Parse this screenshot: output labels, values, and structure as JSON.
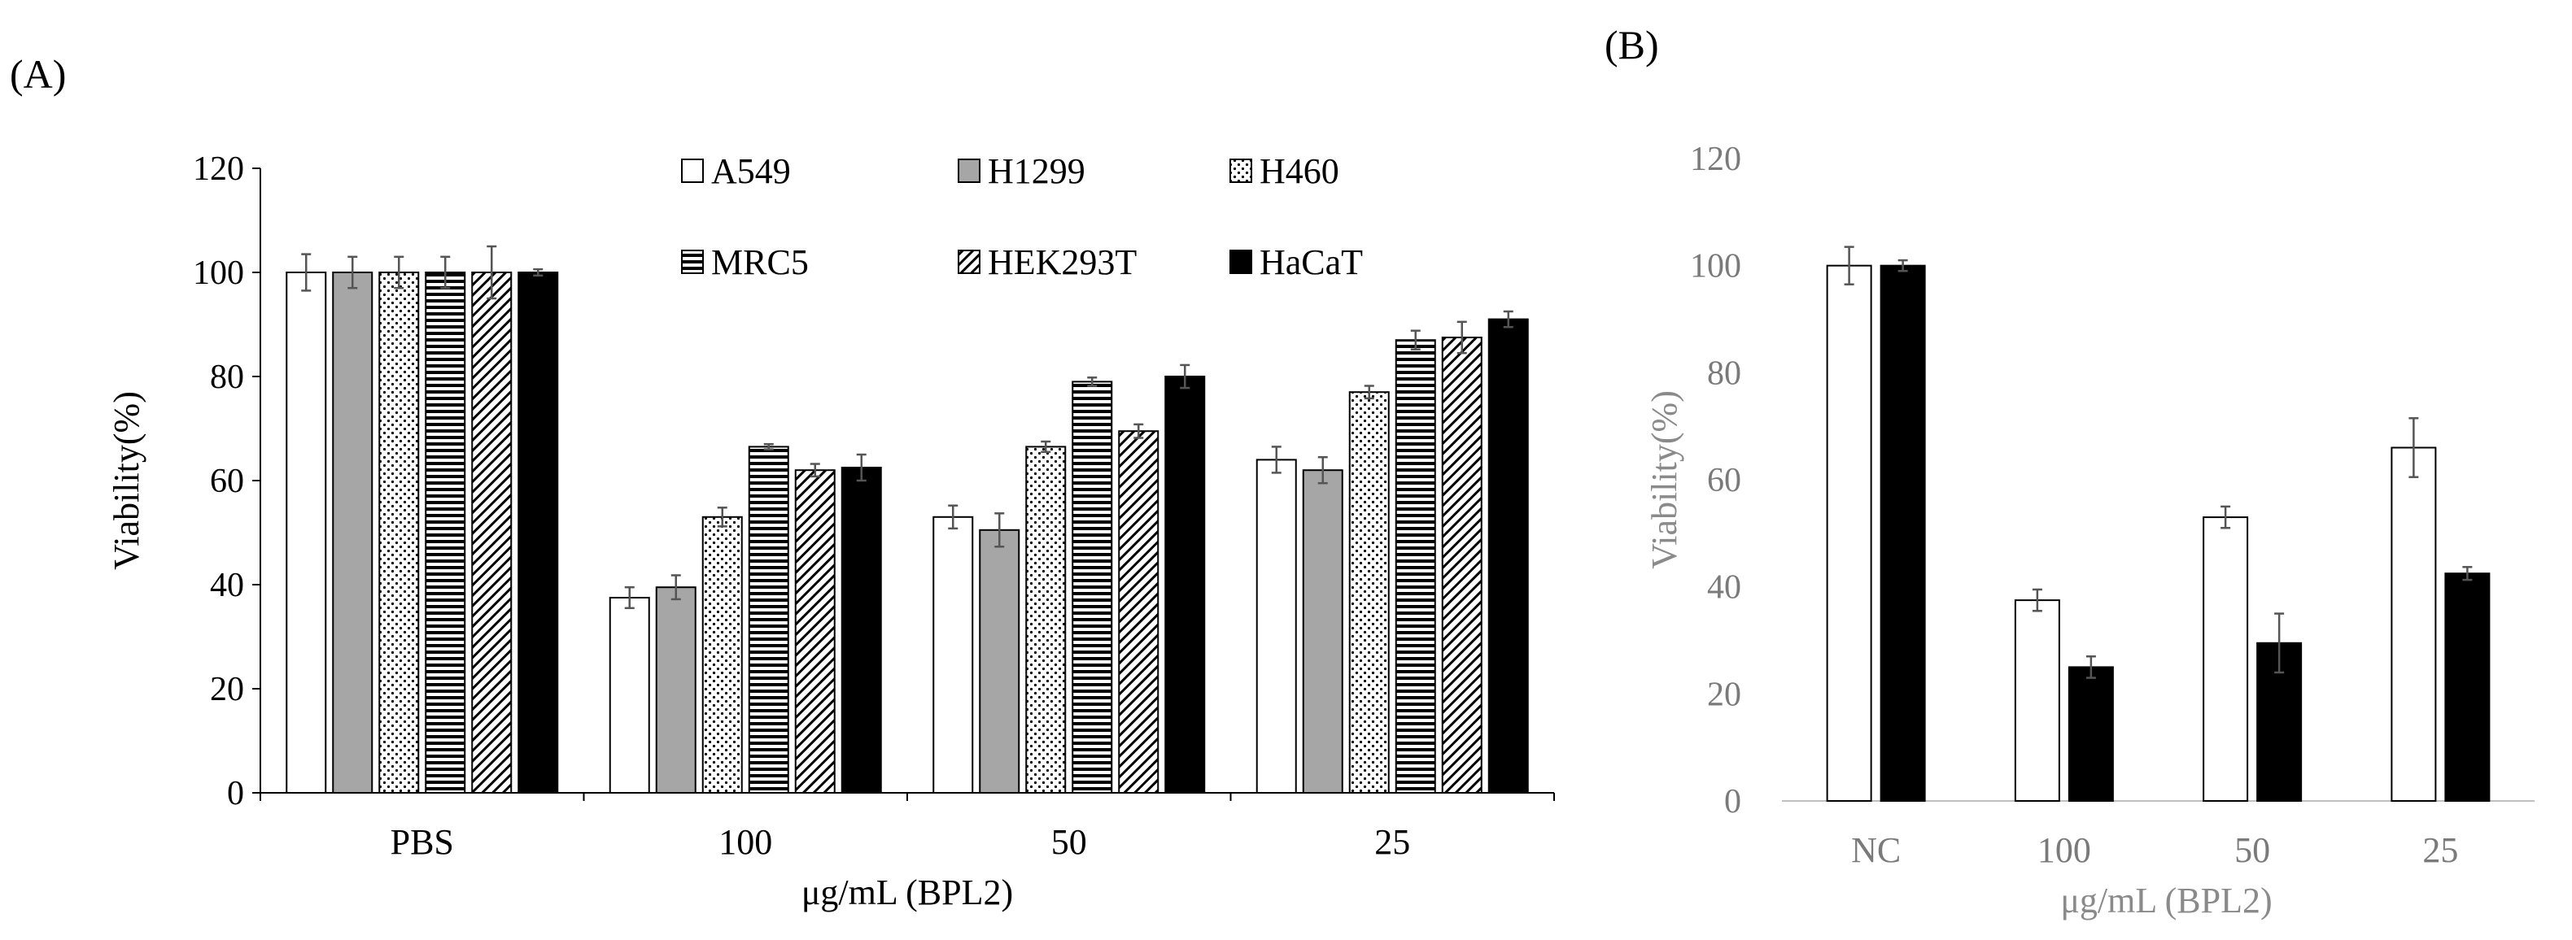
{
  "figure": {
    "panel_a_label": "(A)",
    "panel_b_label": "(B)"
  },
  "chart_data": [
    {
      "type": "bar",
      "panel": "(A)",
      "title": "",
      "xlabel": "μg/mL (BPL2)",
      "ylabel": "Viability(%)",
      "ylim": [
        0,
        120
      ],
      "yticks": [
        0,
        20,
        40,
        60,
        80,
        100,
        120
      ],
      "categories": [
        "PBS",
        "100",
        "50",
        "25"
      ],
      "legend_position": "top-right",
      "series": [
        {
          "name": "A549",
          "pattern": "white",
          "values": [
            100,
            37.5,
            53,
            64
          ],
          "errors": [
            3.5,
            2,
            2.2,
            2.5
          ]
        },
        {
          "name": "H1299",
          "pattern": "gray",
          "values": [
            100,
            39.5,
            50.5,
            62
          ],
          "errors": [
            3,
            2.3,
            3.2,
            2.5
          ]
        },
        {
          "name": "H460",
          "pattern": "dots",
          "values": [
            100,
            53,
            66.5,
            77
          ],
          "errors": [
            3,
            1.8,
            1,
            1.2
          ]
        },
        {
          "name": "MRC5",
          "pattern": "hlines",
          "values": [
            100,
            66.5,
            79,
            87
          ],
          "errors": [
            3,
            0.5,
            0.8,
            1.8
          ]
        },
        {
          "name": "HEK293T",
          "pattern": "diag",
          "values": [
            100,
            62,
            69.5,
            87.5
          ],
          "errors": [
            5,
            1.2,
            1.3,
            3
          ]
        },
        {
          "name": "HaCaT",
          "pattern": "black",
          "values": [
            100,
            62.5,
            80,
            91
          ],
          "errors": [
            0.6,
            2.5,
            2.2,
            1.5
          ]
        }
      ]
    },
    {
      "type": "bar",
      "panel": "(B)",
      "title": "",
      "xlabel": "μg/mL (BPL2)",
      "ylabel": "Viability(%)",
      "ylim": [
        0,
        120
      ],
      "yticks": [
        0,
        20,
        40,
        60,
        80,
        100,
        120
      ],
      "categories": [
        "NC",
        "100",
        "50",
        "25"
      ],
      "series": [
        {
          "name": "white",
          "pattern": "white",
          "values": [
            100,
            37.5,
            53,
            66
          ],
          "errors": [
            3.5,
            2,
            2,
            5.5
          ]
        },
        {
          "name": "black",
          "pattern": "black",
          "values": [
            100,
            25,
            29.5,
            42.5
          ],
          "errors": [
            1,
            2,
            5.5,
            1.2
          ]
        }
      ]
    }
  ]
}
